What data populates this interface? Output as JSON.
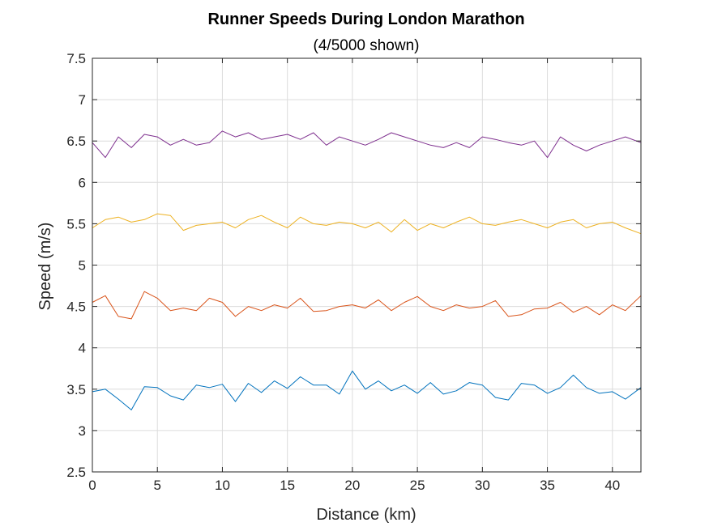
{
  "chart_data": {
    "type": "line",
    "title": "Runner Speeds During London Marathon",
    "subtitle": "(4/5000 shown)",
    "xlabel": "Distance (km)",
    "ylabel": "Speed (m/s)",
    "xlim": [
      0,
      42.195
    ],
    "ylim": [
      2.5,
      7.5
    ],
    "xticks": [
      0,
      5,
      10,
      15,
      20,
      25,
      30,
      35,
      40
    ],
    "yticks": [
      2.5,
      3,
      3.5,
      4,
      4.5,
      5,
      5.5,
      6,
      6.5,
      7,
      7.5
    ],
    "xtick_labels": [
      "0",
      "5",
      "10",
      "15",
      "20",
      "25",
      "30",
      "35",
      "40"
    ],
    "ytick_labels": [
      "2.5",
      "3",
      "3.5",
      "4",
      "4.5",
      "5",
      "5.5",
      "6",
      "6.5",
      "7",
      "7.5"
    ],
    "grid": true,
    "legend": "none",
    "series": [
      {
        "color": "#0072BD",
        "x": [
          0,
          1,
          2,
          3,
          4,
          5,
          6,
          7,
          8,
          9,
          10,
          11,
          12,
          13,
          14,
          15,
          16,
          17,
          18,
          19,
          20,
          21,
          22,
          23,
          24,
          25,
          26,
          27,
          28,
          29,
          30,
          31,
          32,
          33,
          34,
          35,
          36,
          37,
          38,
          39,
          40,
          41,
          42.195
        ],
        "y": [
          3.47,
          3.5,
          3.38,
          3.25,
          3.53,
          3.52,
          3.42,
          3.37,
          3.55,
          3.52,
          3.56,
          3.35,
          3.57,
          3.46,
          3.6,
          3.51,
          3.65,
          3.55,
          3.55,
          3.44,
          3.72,
          3.5,
          3.6,
          3.48,
          3.55,
          3.45,
          3.58,
          3.44,
          3.48,
          3.58,
          3.55,
          3.4,
          3.37,
          3.57,
          3.55,
          3.45,
          3.52,
          3.67,
          3.52,
          3.45,
          3.47,
          3.38,
          3.52
        ]
      },
      {
        "color": "#D95319",
        "x": [
          0,
          1,
          2,
          3,
          4,
          5,
          6,
          7,
          8,
          9,
          10,
          11,
          12,
          13,
          14,
          15,
          16,
          17,
          18,
          19,
          20,
          21,
          22,
          23,
          24,
          25,
          26,
          27,
          28,
          29,
          30,
          31,
          32,
          33,
          34,
          35,
          36,
          37,
          38,
          39,
          40,
          41,
          42.195
        ],
        "y": [
          4.55,
          4.63,
          4.38,
          4.35,
          4.68,
          4.6,
          4.45,
          4.48,
          4.45,
          4.6,
          4.55,
          4.38,
          4.5,
          4.45,
          4.52,
          4.48,
          4.6,
          4.44,
          4.45,
          4.5,
          4.52,
          4.48,
          4.58,
          4.45,
          4.55,
          4.62,
          4.5,
          4.45,
          4.52,
          4.48,
          4.5,
          4.57,
          4.38,
          4.4,
          4.47,
          4.48,
          4.55,
          4.43,
          4.5,
          4.4,
          4.52,
          4.45,
          4.63
        ]
      },
      {
        "color": "#EDB120",
        "x": [
          0,
          1,
          2,
          3,
          4,
          5,
          6,
          7,
          8,
          9,
          10,
          11,
          12,
          13,
          14,
          15,
          16,
          17,
          18,
          19,
          20,
          21,
          22,
          23,
          24,
          25,
          26,
          27,
          28,
          29,
          30,
          31,
          32,
          33,
          34,
          35,
          36,
          37,
          38,
          39,
          40,
          41,
          42.195
        ],
        "y": [
          5.45,
          5.55,
          5.58,
          5.52,
          5.55,
          5.62,
          5.6,
          5.42,
          5.48,
          5.5,
          5.52,
          5.45,
          5.55,
          5.6,
          5.52,
          5.45,
          5.58,
          5.5,
          5.48,
          5.52,
          5.5,
          5.45,
          5.52,
          5.4,
          5.55,
          5.42,
          5.5,
          5.45,
          5.52,
          5.58,
          5.5,
          5.48,
          5.52,
          5.55,
          5.5,
          5.45,
          5.52,
          5.55,
          5.45,
          5.5,
          5.52,
          5.45,
          5.38
        ]
      },
      {
        "color": "#7E2F8E",
        "x": [
          0,
          1,
          2,
          3,
          4,
          5,
          6,
          7,
          8,
          9,
          10,
          11,
          12,
          13,
          14,
          15,
          16,
          17,
          18,
          19,
          20,
          21,
          22,
          23,
          24,
          25,
          26,
          27,
          28,
          29,
          30,
          31,
          32,
          33,
          34,
          35,
          36,
          37,
          38,
          39,
          40,
          41,
          42.195
        ],
        "y": [
          6.48,
          6.3,
          6.55,
          6.42,
          6.58,
          6.55,
          6.45,
          6.52,
          6.45,
          6.48,
          6.62,
          6.55,
          6.6,
          6.52,
          6.55,
          6.58,
          6.52,
          6.6,
          6.45,
          6.55,
          6.5,
          6.45,
          6.52,
          6.6,
          6.55,
          6.5,
          6.45,
          6.42,
          6.48,
          6.42,
          6.55,
          6.52,
          6.48,
          6.45,
          6.5,
          6.3,
          6.55,
          6.45,
          6.38,
          6.45,
          6.5,
          6.55,
          6.48
        ]
      }
    ]
  }
}
